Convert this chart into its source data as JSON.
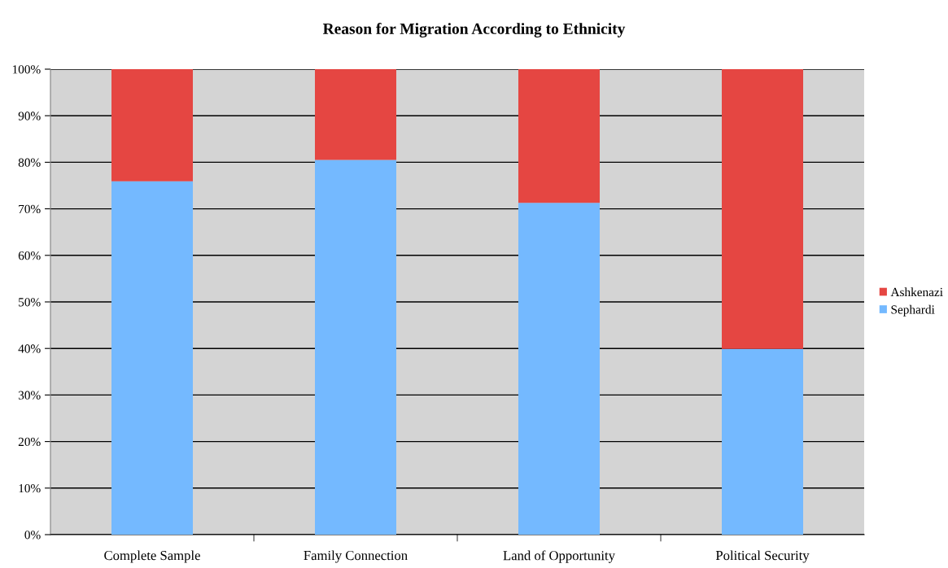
{
  "chart_data": {
    "type": "bar",
    "title": "Reason for Migration According to Ethnicity",
    "categories": [
      "Complete Sample",
      "Family Connection",
      "Land of Opportunity",
      "Political Security"
    ],
    "stacked": true,
    "series": [
      {
        "name": "Sephardi",
        "color": "#74b9ff",
        "values": [
          75.9,
          80.5,
          71.3,
          39.9
        ]
      },
      {
        "name": "Ashkenazi",
        "color": "#e54642",
        "values": [
          24.1,
          19.5,
          28.7,
          60.1
        ]
      }
    ],
    "ylim": [
      0,
      100
    ],
    "yticks": [
      {
        "value": 0,
        "label": "0%"
      },
      {
        "value": 10,
        "label": "10%"
      },
      {
        "value": 20,
        "label": "20%"
      },
      {
        "value": 30,
        "label": "30%"
      },
      {
        "value": 40,
        "label": "40%"
      },
      {
        "value": 50,
        "label": "50%"
      },
      {
        "value": 60,
        "label": "60%"
      },
      {
        "value": 70,
        "label": "70%"
      },
      {
        "value": 80,
        "label": "80%"
      },
      {
        "value": 90,
        "label": "90%"
      },
      {
        "value": 100,
        "label": "100%"
      }
    ],
    "grid": "y",
    "legend": "right"
  }
}
